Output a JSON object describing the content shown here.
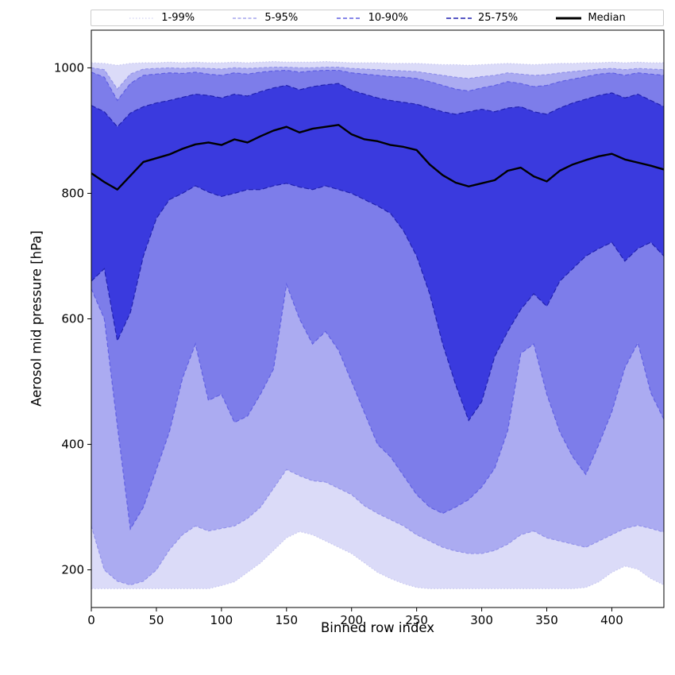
{
  "chart_data": {
    "type": "area",
    "title": "",
    "xlabel": "Binned row index",
    "ylabel": "Aerosol mid pressure [hPa]",
    "xlim": [
      0,
      440
    ],
    "ylim": [
      140,
      1060
    ],
    "xticks": [
      0,
      50,
      100,
      150,
      200,
      250,
      300,
      350,
      400
    ],
    "yticks": [
      200,
      400,
      600,
      800,
      1000
    ],
    "grid": false,
    "legend_position": "top",
    "legend": [
      {
        "label": "1-99%",
        "color": "#c6c6f0",
        "dash": "1.5 2.5",
        "width": 1
      },
      {
        "label": "5-95%",
        "color": "#9393ea",
        "dash": "4 2.5",
        "width": 1.2
      },
      {
        "label": "10-90%",
        "color": "#6060e2",
        "dash": "5 3",
        "width": 1.4
      },
      {
        "label": "25-75%",
        "color": "#2121b0",
        "dash": "6 3",
        "width": 1.6
      },
      {
        "label": "Median",
        "color": "#000000",
        "dash": "",
        "width": 3
      }
    ],
    "x": [
      0,
      10,
      20,
      30,
      40,
      50,
      60,
      70,
      80,
      90,
      100,
      110,
      120,
      130,
      140,
      150,
      160,
      170,
      180,
      190,
      200,
      210,
      220,
      230,
      240,
      250,
      260,
      270,
      280,
      290,
      300,
      310,
      320,
      330,
      340,
      350,
      360,
      370,
      380,
      390,
      400,
      410,
      420,
      430,
      440
    ],
    "bands": [
      {
        "name": "1-99%",
        "fill": "#dbdbf8",
        "edge": "#c6c6f0",
        "dash": "1.5 2.5",
        "lo": [
          170,
          170,
          170,
          170,
          170,
          170,
          170,
          170,
          170,
          170,
          175,
          181,
          196,
          211,
          231,
          251,
          261,
          256,
          246,
          236,
          226,
          211,
          196,
          186,
          178,
          172,
          170,
          170,
          170,
          170,
          170,
          170,
          170,
          170,
          170,
          170,
          170,
          170,
          172,
          181,
          196,
          206,
          201,
          186,
          176
        ],
        "hi": [
          1008,
          1007,
          1004,
          1007,
          1008,
          1008,
          1009,
          1008,
          1009,
          1008,
          1008,
          1009,
          1008,
          1009,
          1010,
          1009,
          1009,
          1009,
          1010,
          1009,
          1008,
          1008,
          1008,
          1007,
          1007,
          1007,
          1006,
          1005,
          1005,
          1004,
          1005,
          1006,
          1007,
          1006,
          1005,
          1006,
          1007,
          1007,
          1008,
          1008,
          1009,
          1008,
          1009,
          1008,
          1008
        ]
      },
      {
        "name": "5-95%",
        "fill": "#ababf1",
        "edge": "#9393ea",
        "dash": "4 2.5",
        "lo": [
          270,
          200,
          182,
          176,
          182,
          200,
          232,
          256,
          270,
          262,
          266,
          270,
          282,
          300,
          330,
          360,
          350,
          342,
          340,
          330,
          320,
          302,
          290,
          280,
          270,
          256,
          246,
          236,
          230,
          226,
          226,
          231,
          241,
          256,
          262,
          251,
          246,
          241,
          236,
          246,
          256,
          266,
          271,
          266,
          260
        ],
        "hi": [
          1000,
          997,
          966,
          990,
          998,
          999,
          1000,
          999,
          1000,
          999,
          998,
          1000,
          999,
          1000,
          1001,
          1001,
          1000,
          1000,
          1001,
          1001,
          999,
          998,
          997,
          996,
          995,
          994,
          991,
          988,
          985,
          983,
          986,
          988,
          992,
          990,
          988,
          989,
          992,
          994,
          996,
          998,
          999,
          997,
          999,
          998,
          997
        ]
      },
      {
        "name": "10-90%",
        "fill": "#7d7dea",
        "edge": "#6060e2",
        "dash": "5 3",
        "lo": [
          648,
          600,
          430,
          265,
          300,
          360,
          420,
          505,
          560,
          470,
          480,
          435,
          445,
          480,
          520,
          655,
          600,
          560,
          580,
          550,
          500,
          450,
          400,
          380,
          350,
          320,
          300,
          290,
          300,
          312,
          332,
          362,
          422,
          545,
          560,
          480,
          420,
          380,
          352,
          400,
          452,
          522,
          562,
          482,
          440
        ],
        "hi": [
          993,
          985,
          948,
          975,
          988,
          990,
          992,
          991,
          993,
          990,
          988,
          992,
          990,
          993,
          995,
          996,
          993,
          995,
          996,
          996,
          992,
          990,
          988,
          986,
          985,
          983,
          978,
          972,
          966,
          963,
          968,
          972,
          978,
          975,
          970,
          972,
          978,
          982,
          986,
          990,
          992,
          988,
          992,
          990,
          988
        ]
      },
      {
        "name": "25-75%",
        "fill": "#3a3ade",
        "edge": "#2121b0",
        "dash": "6 3",
        "lo": [
          660,
          680,
          565,
          610,
          700,
          760,
          790,
          800,
          812,
          802,
          795,
          800,
          806,
          806,
          812,
          816,
          810,
          806,
          812,
          806,
          800,
          790,
          780,
          768,
          740,
          700,
          640,
          560,
          495,
          438,
          468,
          540,
          580,
          615,
          640,
          620,
          660,
          680,
          700,
          712,
          722,
          692,
          712,
          722,
          700
        ],
        "hi": [
          940,
          930,
          906,
          928,
          938,
          944,
          948,
          953,
          958,
          956,
          952,
          958,
          955,
          962,
          968,
          972,
          965,
          970,
          973,
          975,
          964,
          958,
          952,
          948,
          945,
          942,
          936,
          930,
          926,
          930,
          934,
          930,
          936,
          938,
          930,
          926,
          936,
          944,
          950,
          956,
          960,
          952,
          958,
          948,
          938
        ]
      }
    ],
    "median": {
      "name": "Median",
      "color": "#000000",
      "values": [
        832,
        818,
        806,
        828,
        850,
        856,
        862,
        871,
        878,
        881,
        877,
        886,
        881,
        891,
        900,
        906,
        897,
        903,
        906,
        909,
        894,
        886,
        883,
        877,
        874,
        869,
        846,
        829,
        817,
        811,
        816,
        821,
        836,
        841,
        827,
        819,
        836,
        846,
        853,
        859,
        863,
        854,
        849,
        844,
        838
      ]
    }
  }
}
